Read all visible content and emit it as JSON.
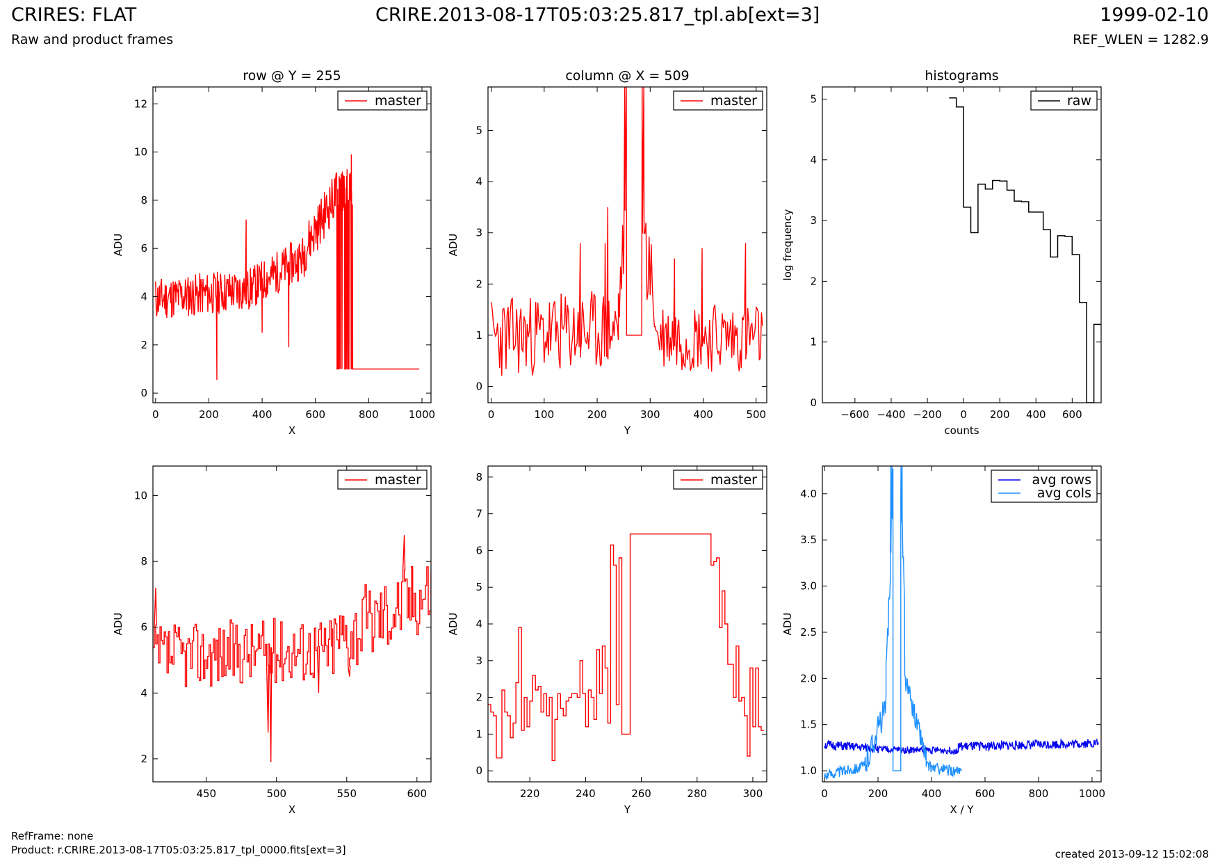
{
  "header": {
    "title": "CRIRES: FLAT",
    "subtitle": "Raw and product frames",
    "file": "CRIRE.2013-08-17T05:03:25.817_tpl.ab[ext=3]",
    "date": "1999-02-10",
    "ref_wlen": "REF_WLEN = 1282.9"
  },
  "footer": {
    "refframe": "RefFrame: none",
    "product": "Product: r.CRIRE.2013-08-17T05:03:25.817_tpl_0000.fits[ext=3]",
    "created": "created 2013-09-12 15:02:08"
  },
  "colors": {
    "master": "#ff0000",
    "raw": "#000000",
    "avg_rows": "#0000ee",
    "avg_cols": "#1e90ff"
  },
  "chart_data": [
    {
      "id": "row",
      "type": "line",
      "title": "row @ Y = 255",
      "xlabel": "X",
      "ylabel": "ADU",
      "xlim": [
        -10,
        1034
      ],
      "ylim": [
        -0.4,
        12.7
      ],
      "xticks": [
        0,
        200,
        400,
        600,
        800,
        1000
      ],
      "yticks": [
        0,
        2,
        4,
        6,
        8,
        10,
        12
      ],
      "series": [
        {
          "name": "master",
          "color": "#ff0000",
          "style": "noise",
          "segments": [
            {
              "x0": 0,
              "x1": 350,
              "base0": 3.9,
              "base1": 4.3,
              "amp": 0.9,
              "step": 2
            },
            {
              "x0": 350,
              "x1": 560,
              "base0": 4.3,
              "base1": 5.7,
              "amp": 0.9,
              "step": 2
            },
            {
              "x0": 560,
              "x1": 680,
              "base0": 6.0,
              "base1": 8.3,
              "amp": 1.0,
              "step": 2
            },
            {
              "x0": 680,
              "x1": 740,
              "base0": 8.3,
              "base1": 8.6,
              "amp": 0.9,
              "step": 1,
              "dropout": 1.0
            },
            {
              "x0": 740,
              "x1": 1024,
              "base0": 1.0,
              "base1": 1.0,
              "amp": 0,
              "step": 50
            }
          ],
          "spikes": [
            [
              230,
              0.55
            ],
            [
              340,
              7.2
            ],
            [
              500,
              1.9
            ],
            [
              400,
              2.5
            ],
            [
              735,
              9.9
            ]
          ],
          "seed": 11
        }
      ]
    },
    {
      "id": "col",
      "type": "line",
      "title": "column @ X = 509",
      "xlabel": "Y",
      "ylabel": "ADU",
      "xlim": [
        -6,
        520
      ],
      "ylim": [
        -0.32,
        5.85
      ],
      "xticks": [
        0,
        100,
        200,
        300,
        400,
        500
      ],
      "yticks": [
        0,
        1,
        2,
        3,
        4,
        5
      ],
      "series": [
        {
          "name": "master",
          "color": "#ff0000",
          "style": "noise",
          "segments": [
            {
              "x0": 0,
              "x1": 240,
              "base0": 0.95,
              "base1": 1.1,
              "amp": 0.8,
              "step": 2
            },
            {
              "x0": 240,
              "x1": 252,
              "base0": 1.5,
              "base1": 3.0,
              "amp": 0.8,
              "step": 2
            },
            {
              "x0": 256,
              "x1": 284,
              "base0": 1.0,
              "base1": 1.0,
              "amp": 0,
              "step": 28
            },
            {
              "x0": 290,
              "x1": 310,
              "base0": 2.8,
              "base1": 1.5,
              "amp": 0.9,
              "step": 2
            },
            {
              "x0": 310,
              "x1": 512,
              "base0": 1.0,
              "base1": 0.95,
              "amp": 0.7,
              "step": 2
            }
          ],
          "spikes": [
            [
              252,
              5.85
            ],
            [
              255,
              5.85
            ],
            [
              285,
              5.85
            ],
            [
              288,
              5.85
            ],
            [
              215,
              2.8
            ],
            [
              220,
              3.5
            ],
            [
              398,
              2.7
            ],
            [
              480,
              2.8
            ],
            [
              346,
              2.5
            ],
            [
              168,
              2.8
            ]
          ],
          "seed": 23
        }
      ]
    },
    {
      "id": "hist",
      "type": "bar",
      "title": "histograms",
      "xlabel": "counts",
      "ylabel": "log frequency",
      "xlim": [
        -780,
        760
      ],
      "ylim": [
        0,
        5.2
      ],
      "xticks": [
        -600,
        -400,
        -200,
        0,
        200,
        400,
        600
      ],
      "yticks": [
        0,
        1,
        2,
        3,
        4,
        5
      ],
      "series": [
        {
          "name": "raw",
          "color": "#000000",
          "style": "steps",
          "edges": [
            -80,
            -40,
            0,
            40,
            80,
            120,
            160,
            200,
            240,
            280,
            320,
            360,
            400,
            440,
            480,
            520,
            560,
            600,
            640,
            680,
            720,
            760
          ],
          "values": [
            5.02,
            4.87,
            3.22,
            2.8,
            3.6,
            3.52,
            3.66,
            3.65,
            3.5,
            3.32,
            3.31,
            3.14,
            3.14,
            2.85,
            2.4,
            2.75,
            2.74,
            2.44,
            1.65,
            0,
            1.29
          ]
        }
      ]
    },
    {
      "id": "rowzoom",
      "type": "line",
      "title": "",
      "xlabel": "X",
      "ylabel": "ADU",
      "xlim": [
        412,
        610
      ],
      "ylim": [
        1.3,
        10.9
      ],
      "xticks": [
        450,
        500,
        550,
        600
      ],
      "yticks": [
        2,
        4,
        6,
        8,
        10
      ],
      "series": [
        {
          "name": "master",
          "color": "#ff0000",
          "style": "stepnoise",
          "segments": [
            {
              "x0": 412,
              "x1": 540,
              "base0": 5.1,
              "base1": 5.4,
              "amp": 1.0,
              "step": 1
            },
            {
              "x0": 540,
              "x1": 610,
              "base0": 5.6,
              "base1": 7.2,
              "amp": 1.2,
              "step": 1
            }
          ],
          "spikes": [
            [
              414,
              7.2
            ],
            [
              494,
              2.8
            ],
            [
              496,
              1.9
            ],
            [
              591,
              8.8
            ],
            [
              530,
              4.0
            ],
            [
              552,
              4.5
            ]
          ],
          "seed": 37
        }
      ]
    },
    {
      "id": "colzoom",
      "type": "line",
      "title": "",
      "xlabel": "Y",
      "ylabel": "ADU",
      "xlim": [
        205,
        305
      ],
      "ylim": [
        -0.3,
        8.3
      ],
      "xticks": [
        220,
        240,
        260,
        280,
        300
      ],
      "yticks": [
        0,
        1,
        2,
        3,
        4,
        5,
        6,
        7,
        8
      ],
      "series": [
        {
          "name": "master",
          "color": "#ff0000",
          "style": "steps",
          "edges": [
            205,
            206,
            207,
            208,
            209,
            210,
            211,
            212,
            213,
            214,
            215,
            216,
            217,
            218,
            219,
            220,
            221,
            222,
            223,
            224,
            225,
            226,
            227,
            228,
            229,
            230,
            231,
            232,
            233,
            234,
            235,
            236,
            237,
            238,
            239,
            240,
            241,
            242,
            243,
            244,
            245,
            246,
            247,
            248,
            249,
            250,
            251,
            252,
            253,
            254,
            255,
            256,
            285,
            286,
            287,
            288,
            289,
            290,
            291,
            292,
            293,
            294,
            295,
            296,
            297,
            298,
            299,
            300,
            301,
            302,
            303,
            304
          ],
          "values": [
            1.8,
            1.6,
            1.5,
            0.35,
            0.35,
            2.2,
            1.6,
            1.5,
            0.9,
            1.3,
            2.4,
            3.9,
            1.1,
            2.0,
            1.2,
            1.9,
            2.6,
            2.2,
            2.3,
            1.6,
            2.1,
            1.5,
            2.0,
            0.28,
            1.4,
            2.1,
            1.7,
            1.5,
            1.9,
            2.0,
            2.1,
            2.1,
            2.0,
            3.0,
            2.1,
            1.2,
            2.2,
            2.0,
            1.4,
            3.3,
            2.1,
            3.4,
            2.8,
            1.3,
            6.15,
            5.6,
            1.8,
            5.8,
            1.0,
            1.0,
            1.0,
            6.45,
            5.6,
            5.7,
            5.8,
            3.9,
            4.9,
            4.0,
            2.9,
            2.9,
            2.0,
            3.4,
            1.9,
            2.0,
            1.5,
            0.4,
            2.8,
            1.2,
            2.8,
            1.2,
            1.1
          ],
          "fix_xspan": true
        }
      ]
    },
    {
      "id": "avg",
      "type": "line",
      "title": "",
      "xlabel": "X / Y",
      "ylabel": "ADU",
      "xlim": [
        -8,
        1034
      ],
      "ylim": [
        0.88,
        4.3
      ],
      "xticks": [
        0,
        200,
        400,
        600,
        800,
        1000
      ],
      "yticks": [
        1.0,
        1.5,
        2.0,
        2.5,
        3.0,
        3.5,
        4.0
      ],
      "series": [
        {
          "name": "avg rows",
          "color": "#0000ee",
          "style": "noise",
          "segments": [
            {
              "x0": 0,
              "x1": 200,
              "base0": 1.28,
              "base1": 1.24,
              "amp": 0.05,
              "step": 2
            },
            {
              "x0": 200,
              "x1": 500,
              "base0": 1.23,
              "base1": 1.22,
              "amp": 0.04,
              "step": 2
            },
            {
              "x0": 500,
              "x1": 1024,
              "base0": 1.26,
              "base1": 1.3,
              "amp": 0.05,
              "step": 2
            }
          ],
          "spikes": [],
          "seed": 51
        },
        {
          "name": "avg cols",
          "color": "#1e90ff",
          "style": "noise",
          "segments": [
            {
              "x0": 0,
              "x1": 150,
              "base0": 0.95,
              "base1": 1.05,
              "amp": 0.06,
              "step": 2
            },
            {
              "x0": 150,
              "x1": 230,
              "base0": 1.05,
              "base1": 1.7,
              "amp": 0.15,
              "step": 2
            },
            {
              "x0": 230,
              "x1": 256,
              "base0": 1.9,
              "base1": 4.2,
              "amp": 0.3,
              "step": 2
            },
            {
              "x0": 256,
              "x1": 285,
              "base0": 1.0,
              "base1": 1.0,
              "amp": 0,
              "step": 29
            },
            {
              "x0": 285,
              "x1": 300,
              "base0": 4.2,
              "base1": 2.6,
              "amp": 0.3,
              "step": 2
            },
            {
              "x0": 300,
              "x1": 380,
              "base0": 2.0,
              "base1": 1.15,
              "amp": 0.12,
              "step": 2
            },
            {
              "x0": 380,
              "x1": 512,
              "base0": 1.05,
              "base1": 0.98,
              "amp": 0.06,
              "step": 2
            }
          ],
          "spikes": [
            [
              248,
              4.3
            ],
            [
              252,
              4.3
            ],
            [
              286,
              4.3
            ],
            [
              290,
              4.3
            ]
          ],
          "seed": 63
        }
      ]
    }
  ]
}
